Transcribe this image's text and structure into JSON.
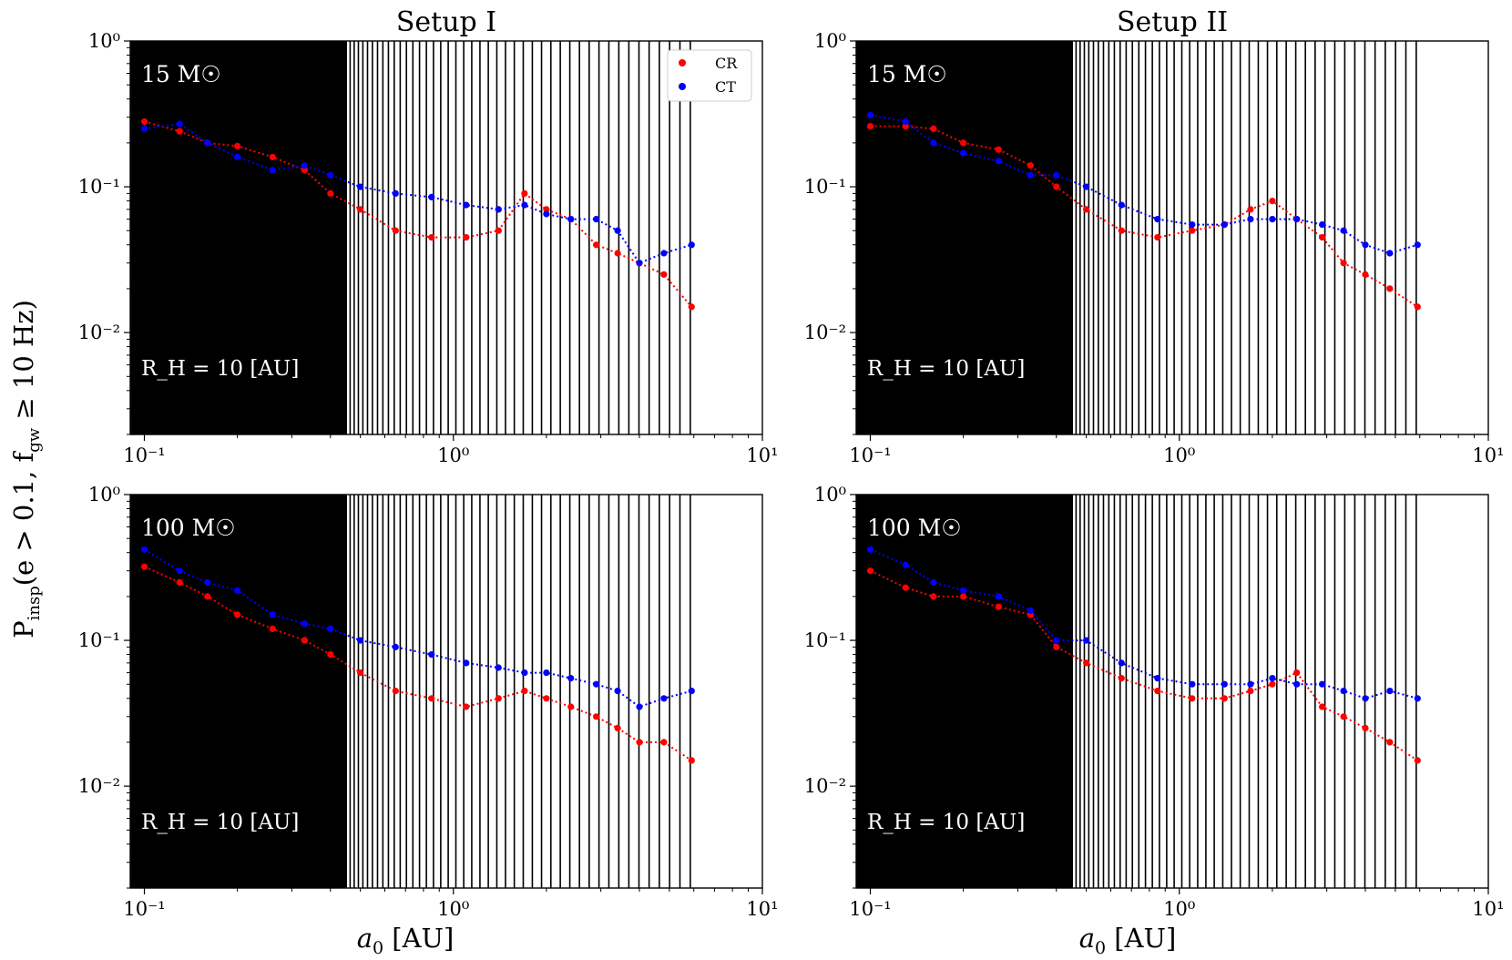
{
  "figure": {
    "ylabel": "P_insp(e > 0.1, f_gw ≥ 10 Hz)",
    "ylabel_parts": {
      "p": "P",
      "p_sub": "insp",
      "cond1": "(e > 0.1, f",
      "f_sub": "gw",
      "cond2": " ≥ 10 Hz)"
    },
    "xlabel": "a0 [AU]",
    "xlabel_parts": {
      "var": "a",
      "var_sub": "0",
      "unit": " [AU]"
    }
  },
  "legend": {
    "entries": [
      {
        "label": "CR",
        "color": "#ff0000"
      },
      {
        "label": "CT",
        "color": "#0000ff"
      }
    ]
  },
  "colors": {
    "cr": "#ff0000",
    "ct": "#0000ff",
    "background_lines": "#000000"
  },
  "chart_data": [
    {
      "type": "scatter",
      "title": "Setup I",
      "mass_label": "15 M☉",
      "rh_label": "R_H = 10 [AU]",
      "xscale": "log",
      "yscale": "log",
      "xlim": [
        0.09,
        10
      ],
      "ylim": [
        0.002,
        1
      ],
      "xticks": [
        "10⁻¹",
        "10⁰",
        "10¹"
      ],
      "yticks": [
        "10⁻²",
        "10⁻¹",
        "10⁰"
      ],
      "legend_position": "top-right",
      "series": [
        {
          "name": "CR",
          "x": [
            0.1,
            0.13,
            0.16,
            0.2,
            0.26,
            0.33,
            0.4,
            0.5,
            0.65,
            0.85,
            1.1,
            1.4,
            1.7,
            2.0,
            2.4,
            2.9,
            3.4,
            4.0,
            4.8,
            5.9
          ],
          "y": [
            0.28,
            0.24,
            0.2,
            0.19,
            0.16,
            0.13,
            0.09,
            0.07,
            0.05,
            0.045,
            0.045,
            0.05,
            0.09,
            0.07,
            0.06,
            0.04,
            0.035,
            0.03,
            0.025,
            0.015
          ]
        },
        {
          "name": "CT",
          "x": [
            0.1,
            0.13,
            0.16,
            0.2,
            0.26,
            0.33,
            0.4,
            0.5,
            0.65,
            0.85,
            1.1,
            1.4,
            1.7,
            2.0,
            2.4,
            2.9,
            3.4,
            4.0,
            4.8,
            5.9
          ],
          "y": [
            0.25,
            0.27,
            0.2,
            0.16,
            0.13,
            0.14,
            0.12,
            0.1,
            0.09,
            0.085,
            0.075,
            0.07,
            0.075,
            0.065,
            0.06,
            0.06,
            0.05,
            0.03,
            0.035,
            0.04
          ]
        }
      ]
    },
    {
      "type": "scatter",
      "title": "Setup II",
      "mass_label": "15 M☉",
      "rh_label": "R_H = 10 [AU]",
      "xscale": "log",
      "yscale": "log",
      "xlim": [
        0.09,
        10
      ],
      "ylim": [
        0.002,
        1
      ],
      "xticks": [
        "10⁻¹",
        "10⁰",
        "10¹"
      ],
      "yticks": [
        "10⁻²",
        "10⁻¹",
        "10⁰"
      ],
      "series": [
        {
          "name": "CR",
          "x": [
            0.1,
            0.13,
            0.16,
            0.2,
            0.26,
            0.33,
            0.4,
            0.5,
            0.65,
            0.85,
            1.1,
            1.4,
            1.7,
            2.0,
            2.4,
            2.9,
            3.4,
            4.0,
            4.8,
            5.9
          ],
          "y": [
            0.26,
            0.26,
            0.25,
            0.2,
            0.18,
            0.14,
            0.1,
            0.07,
            0.05,
            0.045,
            0.05,
            0.055,
            0.07,
            0.08,
            0.06,
            0.045,
            0.03,
            0.025,
            0.02,
            0.015
          ]
        },
        {
          "name": "CT",
          "x": [
            0.1,
            0.13,
            0.16,
            0.2,
            0.26,
            0.33,
            0.4,
            0.5,
            0.65,
            0.85,
            1.1,
            1.4,
            1.7,
            2.0,
            2.4,
            2.9,
            3.4,
            4.0,
            4.8,
            5.9
          ],
          "y": [
            0.31,
            0.28,
            0.2,
            0.17,
            0.15,
            0.12,
            0.12,
            0.1,
            0.075,
            0.06,
            0.055,
            0.055,
            0.06,
            0.06,
            0.06,
            0.055,
            0.05,
            0.04,
            0.035,
            0.04
          ]
        }
      ]
    },
    {
      "type": "scatter",
      "title": "",
      "mass_label": "100 M☉",
      "rh_label": "R_H = 10 [AU]",
      "xscale": "log",
      "yscale": "log",
      "xlim": [
        0.09,
        10
      ],
      "ylim": [
        0.002,
        1
      ],
      "xticks": [
        "10⁻¹",
        "10⁰",
        "10¹"
      ],
      "yticks": [
        "10⁻²",
        "10⁻¹",
        "10⁰"
      ],
      "series": [
        {
          "name": "CR",
          "x": [
            0.1,
            0.13,
            0.16,
            0.2,
            0.26,
            0.33,
            0.4,
            0.5,
            0.65,
            0.85,
            1.1,
            1.4,
            1.7,
            2.0,
            2.4,
            2.9,
            3.4,
            4.0,
            4.8,
            5.9
          ],
          "y": [
            0.32,
            0.25,
            0.2,
            0.15,
            0.12,
            0.1,
            0.08,
            0.06,
            0.045,
            0.04,
            0.035,
            0.04,
            0.045,
            0.04,
            0.035,
            0.03,
            0.025,
            0.02,
            0.02,
            0.015
          ]
        },
        {
          "name": "CT",
          "x": [
            0.1,
            0.13,
            0.16,
            0.2,
            0.26,
            0.33,
            0.4,
            0.5,
            0.65,
            0.85,
            1.1,
            1.4,
            1.7,
            2.0,
            2.4,
            2.9,
            3.4,
            4.0,
            4.8,
            5.9
          ],
          "y": [
            0.42,
            0.3,
            0.25,
            0.22,
            0.15,
            0.13,
            0.12,
            0.1,
            0.09,
            0.08,
            0.07,
            0.065,
            0.06,
            0.06,
            0.055,
            0.05,
            0.045,
            0.035,
            0.04,
            0.045
          ]
        }
      ]
    },
    {
      "type": "scatter",
      "title": "",
      "mass_label": "100 M☉",
      "rh_label": "R_H = 10 [AU]",
      "xscale": "log",
      "yscale": "log",
      "xlim": [
        0.09,
        10
      ],
      "ylim": [
        0.002,
        1
      ],
      "xticks": [
        "10⁻¹",
        "10⁰",
        "10¹"
      ],
      "yticks": [
        "10⁻²",
        "10⁻¹",
        "10⁰"
      ],
      "series": [
        {
          "name": "CR",
          "x": [
            0.1,
            0.13,
            0.16,
            0.2,
            0.26,
            0.33,
            0.4,
            0.5,
            0.65,
            0.85,
            1.1,
            1.4,
            1.7,
            2.0,
            2.4,
            2.9,
            3.4,
            4.0,
            4.8,
            5.9
          ],
          "y": [
            0.3,
            0.23,
            0.2,
            0.2,
            0.17,
            0.15,
            0.09,
            0.07,
            0.055,
            0.045,
            0.04,
            0.04,
            0.045,
            0.05,
            0.06,
            0.035,
            0.03,
            0.025,
            0.02,
            0.015
          ]
        },
        {
          "name": "CT",
          "x": [
            0.1,
            0.13,
            0.16,
            0.2,
            0.26,
            0.33,
            0.4,
            0.5,
            0.65,
            0.85,
            1.1,
            1.4,
            1.7,
            2.0,
            2.4,
            2.9,
            3.4,
            4.0,
            4.8,
            5.9
          ],
          "y": [
            0.42,
            0.33,
            0.25,
            0.22,
            0.2,
            0.16,
            0.1,
            0.1,
            0.07,
            0.055,
            0.05,
            0.05,
            0.05,
            0.055,
            0.05,
            0.05,
            0.045,
            0.04,
            0.045,
            0.04
          ]
        }
      ]
    }
  ]
}
